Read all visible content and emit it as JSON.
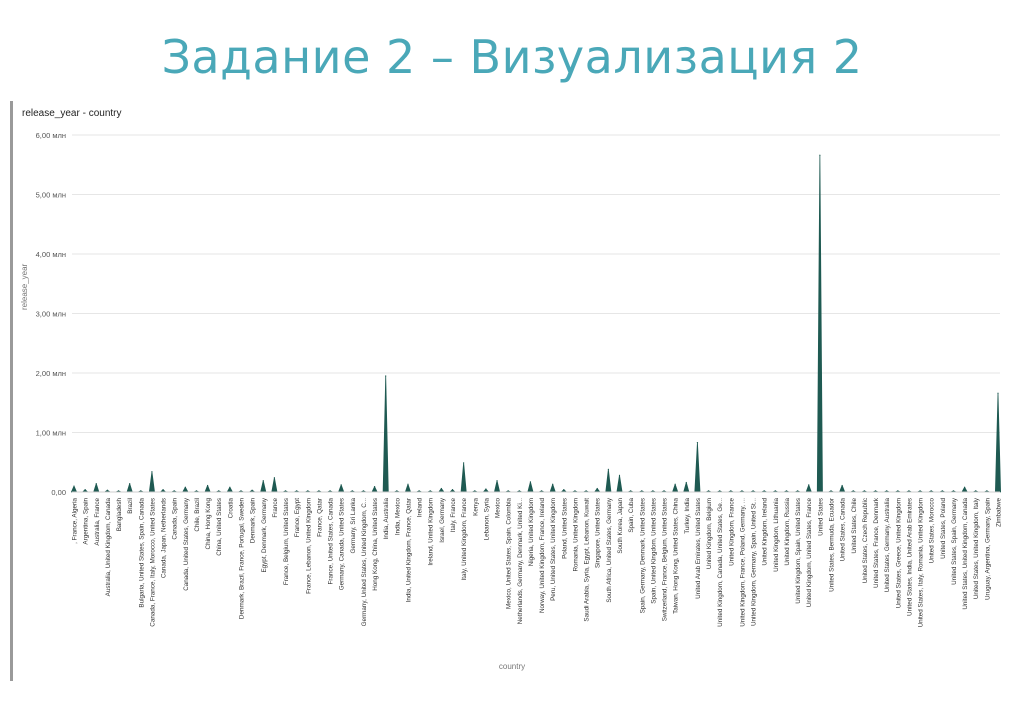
{
  "slide_title": "Задание 2 – Визуализация 2",
  "chart_data": {
    "type": "area",
    "title": "release_year - country",
    "ylabel": "release_year",
    "xlabel": "country",
    "ylim": [
      0,
      6000000
    ],
    "y_ticks": [
      {
        "value": 0,
        "label": "0,00"
      },
      {
        "value": 1000000,
        "label": "1,00 млн"
      },
      {
        "value": 2000000,
        "label": "2,00 млн"
      },
      {
        "value": 3000000,
        "label": "3,00 млн"
      },
      {
        "value": 4000000,
        "label": "4,00 млн"
      },
      {
        "value": 5000000,
        "label": "5,00 млн"
      },
      {
        "value": 6000000,
        "label": "6,00 млн"
      }
    ],
    "series_color": "#1f5a52",
    "grid": true,
    "legend": "none",
    "categories": [
      ", France, Algeria",
      "Argentina, Spain",
      "Australia, France",
      "Australia, United Kingdom, Canada",
      "Bangladesh",
      "Brazil",
      "Bulgaria, United States, Spain, Canada",
      "Canada, France, Italy, Morocco, United States",
      "Canada, Japan, Netherlands",
      "Canada, Spain",
      "Canada, United States, Germany",
      "Chile, Brazil",
      "China, Hong Kong",
      "China, United States",
      "Croatia",
      "Denmark, Brazil, France, Portugal, Sweden",
      "Denmark, Spain",
      "Egypt, Denmark, Germany",
      "France",
      "France, Belgium, United States",
      "France, Egypt",
      "France, Lebanon, United Kingdom",
      "France, Qatar",
      "France, United States, Canada",
      "Germany, Canada, United States",
      "Germany, Sri Lanka",
      "Germany, United States, United Kingdom, C...",
      "Hong Kong, China, United States",
      "India, Australia",
      "India, Mexico",
      "India, United Kingdom, France, Qatar",
      "Ireland",
      "Ireland, United Kingdom",
      "Israel, Germany",
      "Italy, France",
      "Italy, United Kingdom, France",
      "Kenya",
      "Lebanon, Syria",
      "Mexico",
      "Mexico, United States, Spain, Colombia",
      "Netherlands, Germany, Denmark, United Ki...",
      "Nigeria, United Kingdom",
      "Norway, United Kingdom, France, Ireland",
      "Peru, United States, United Kingdom",
      "Poland, United States",
      "Romania, United Kingdom",
      "Saudi Arabia, Syria, Egypt, Lebanon, Kuwait",
      "Singapore, United States",
      "South Africa, United States, Germany",
      "South Korea, Japan",
      "Spain, Cuba",
      "Spain, Germany, Denmark, United States",
      "Spain, United Kingdom, United States",
      "Switzerland, France, Belgium, United States",
      "Taiwan, Hong Kong, United States, China",
      "Turkey, India",
      "United Arab Emirates, United States",
      "United Kingdom, Belgium",
      "United Kingdom, Canada, United States, Ge...",
      "United Kingdom, France",
      "United Kingdom, France, Poland, Germany, ...",
      "United Kingdom, Germany, Spain, United St...",
      "United Kingdom, Ireland",
      "United Kingdom, Lithuania",
      "United Kingdom, Russia",
      "United Kingdom, Spain, United States",
      "United Kingdom, United States, France",
      "United States",
      "United States, Bermuda, Ecuador",
      "United States, Canada",
      "United States, Chile",
      "United States, Czech Republic",
      "United States, France, Denmark",
      "United States, Germany, Australia",
      "United States, Greece, United Kingdom",
      "United States, India, United Arab Emirates",
      "United States, Italy, Romania, United Kingdom",
      "United States, Morocco",
      "United States, Poland",
      "United States, Spain, Germany",
      "United States, United Kingdom, Canada",
      "United States, United Kingdom, Italy",
      "Uruguay, Argentina, Germany, Spain",
      "Zimbabwe"
    ],
    "values": [
      100000,
      40000,
      140000,
      30000,
      20000,
      140000,
      20000,
      340000,
      40000,
      20000,
      80000,
      20000,
      110000,
      20000,
      80000,
      20000,
      30000,
      190000,
      240000,
      20000,
      20000,
      20000,
      20000,
      20000,
      120000,
      20000,
      20000,
      90000,
      1950000,
      20000,
      130000,
      20000,
      20000,
      60000,
      40000,
      490000,
      20000,
      50000,
      190000,
      20000,
      20000,
      170000,
      20000,
      130000,
      40000,
      20000,
      20000,
      60000,
      380000,
      280000,
      20000,
      20000,
      20000,
      20000,
      130000,
      160000,
      830000,
      20000,
      20000,
      20000,
      20000,
      20000,
      20000,
      20000,
      20000,
      20000,
      120000,
      5660000,
      20000,
      110000,
      20000,
      20000,
      20000,
      20000,
      20000,
      20000,
      20000,
      20000,
      20000,
      20000,
      80000,
      20000,
      20000,
      1660000
    ]
  }
}
